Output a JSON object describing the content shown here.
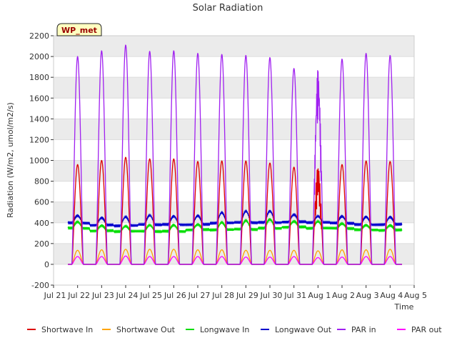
{
  "chart_data": {
    "type": "line",
    "title": "Solar Radiation",
    "xlabel": "Time",
    "ylabel": "Radiation (W/m2, umol/m2/s)",
    "ylim": [
      -200,
      2200
    ],
    "yticks": [
      -200,
      0,
      200,
      400,
      600,
      800,
      1000,
      1200,
      1400,
      1600,
      1800,
      2000,
      2200
    ],
    "xlim": [
      0,
      15
    ],
    "xticks": [
      {
        "x": 0,
        "label": "Jul 21"
      },
      {
        "x": 1,
        "label": "Jul 22"
      },
      {
        "x": 2,
        "label": "Jul 23"
      },
      {
        "x": 3,
        "label": "Jul 24"
      },
      {
        "x": 4,
        "label": "Jul 25"
      },
      {
        "x": 5,
        "label": "Jul 26"
      },
      {
        "x": 6,
        "label": "Jul 27"
      },
      {
        "x": 7,
        "label": "Jul 28"
      },
      {
        "x": 8,
        "label": "Jul 29"
      },
      {
        "x": 9,
        "label": "Jul 30"
      },
      {
        "x": 10,
        "label": "Jul 31"
      },
      {
        "x": 11,
        "label": "Aug 1"
      },
      {
        "x": 12,
        "label": "Aug 2"
      },
      {
        "x": 13,
        "label": "Aug 3"
      },
      {
        "x": 14,
        "label": "Aug 4"
      },
      {
        "x": 15,
        "label": "Aug 5"
      }
    ],
    "data_x_range": [
      0.6,
      14.5
    ],
    "grid": "horizontal bands",
    "annotation": "WP_met",
    "series": [
      {
        "name": "Shortwave In",
        "color": "#dd0000",
        "kind": "diurnal",
        "daily_peaks": [
          960,
          1000,
          1030,
          1015,
          1015,
          990,
          995,
          995,
          975,
          935,
          950,
          960,
          995,
          990
        ],
        "night": 0
      },
      {
        "name": "Shortwave Out",
        "color": "#ffa500",
        "kind": "diurnal",
        "daily_peaks": [
          135,
          140,
          145,
          145,
          145,
          140,
          140,
          135,
          135,
          135,
          130,
          140,
          140,
          145
        ],
        "night": 0
      },
      {
        "name": "Longwave In",
        "color": "#00dd00",
        "kind": "baseline",
        "daily_min": [
          350,
          325,
          315,
          315,
          320,
          335,
          330,
          335,
          350,
          360,
          345,
          345,
          335,
          330
        ],
        "daily_peak": [
          410,
          375,
          365,
          375,
          380,
          385,
          400,
          420,
          435,
          415,
          410,
          390,
          380,
          375
        ]
      },
      {
        "name": "Longwave Out",
        "color": "#0000cc",
        "kind": "baseline",
        "daily_min": [
          400,
          380,
          370,
          380,
          385,
          385,
          395,
          400,
          405,
          410,
          400,
          395,
          385,
          385
        ],
        "daily_peak": [
          470,
          450,
          455,
          470,
          465,
          470,
          495,
          510,
          515,
          480,
          460,
          460,
          460,
          455
        ]
      },
      {
        "name": "PAR in",
        "color": "#a020f0",
        "kind": "diurnal",
        "daily_peaks": [
          2000,
          2055,
          2110,
          2050,
          2055,
          2030,
          2020,
          2010,
          1990,
          1885,
          1880,
          1975,
          2030,
          2010
        ],
        "night": 0
      },
      {
        "name": "PAR out",
        "color": "#ff00ff",
        "kind": "diurnal",
        "daily_peaks": [
          75,
          75,
          80,
          75,
          75,
          75,
          75,
          70,
          70,
          75,
          65,
          70,
          75,
          75
        ],
        "night": 0
      }
    ]
  }
}
